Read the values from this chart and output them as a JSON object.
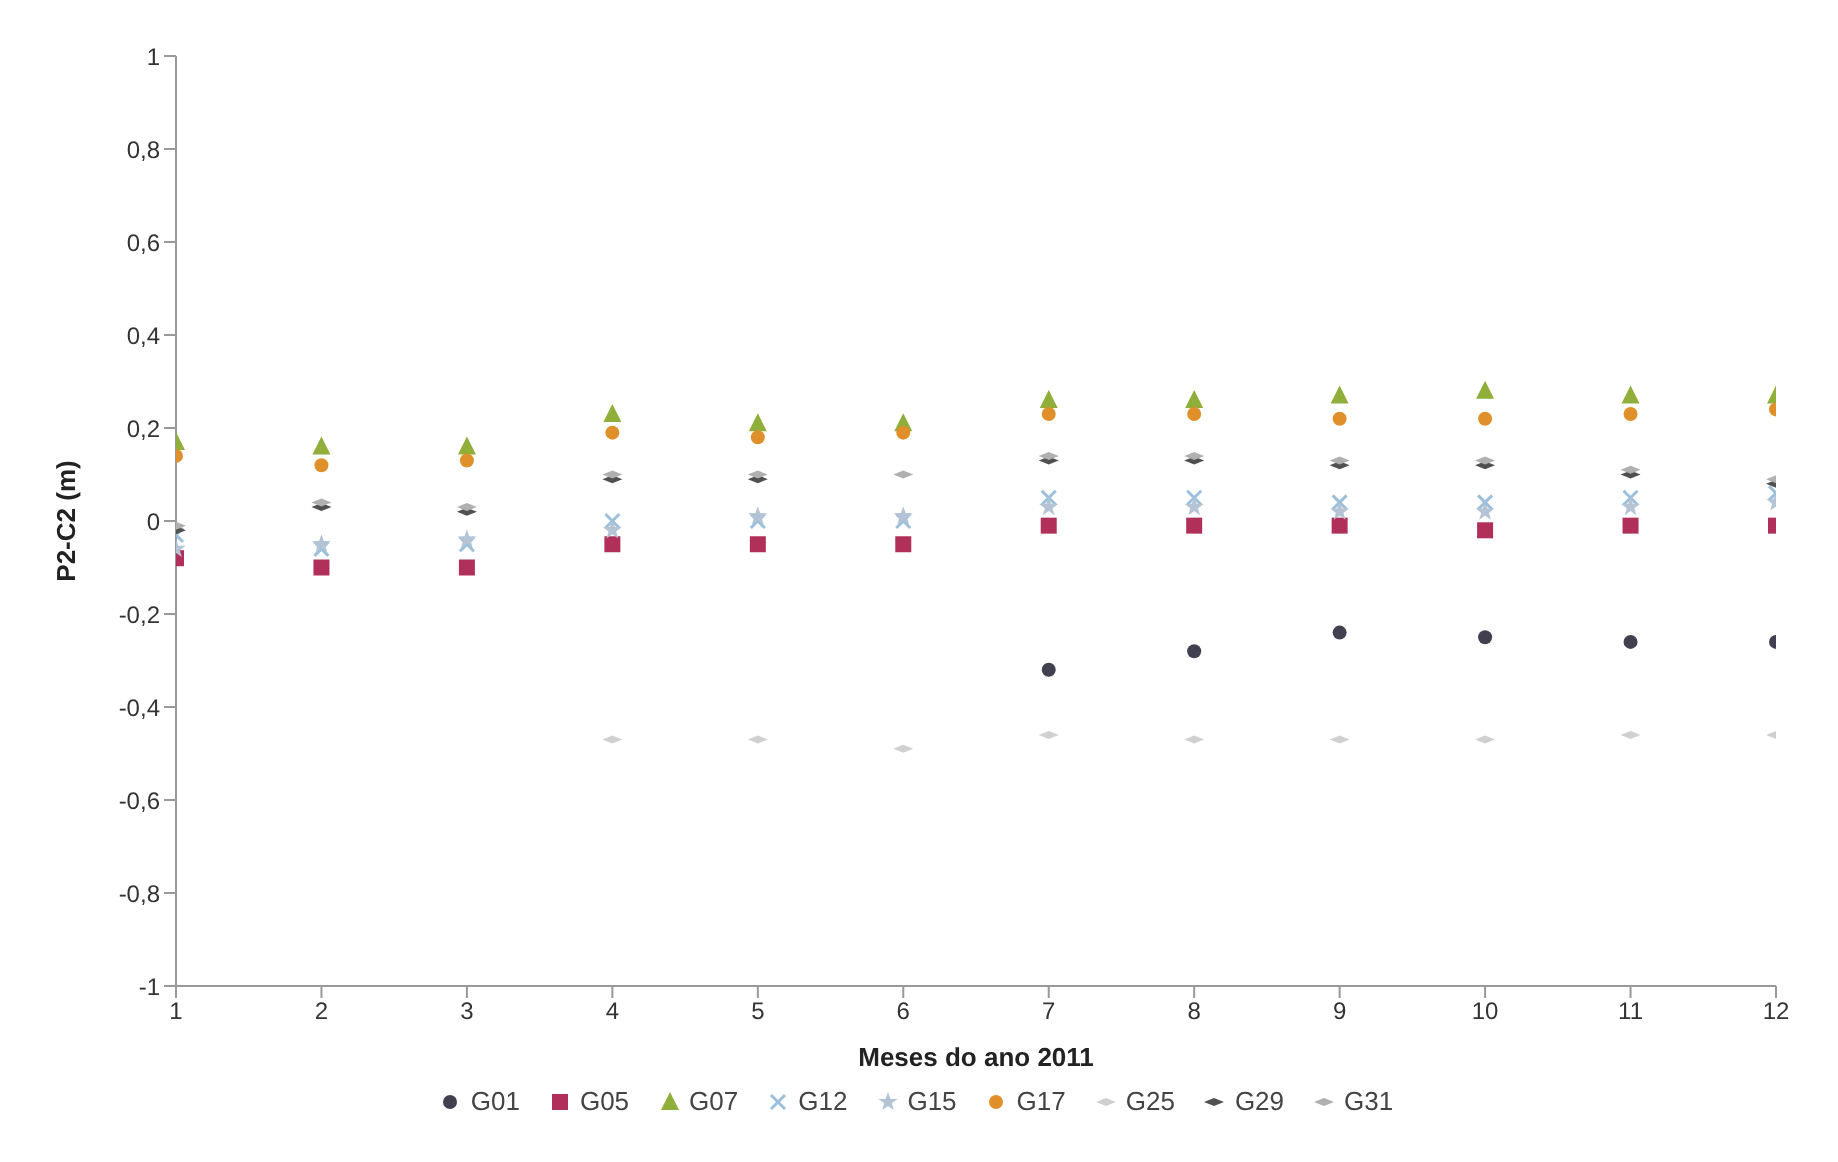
{
  "chart_data": {
    "type": "scatter",
    "xlabel": "Meses do ano 2011",
    "ylabel": "P2-C2 (m)",
    "x": [
      1,
      2,
      3,
      4,
      5,
      6,
      7,
      8,
      9,
      10,
      11,
      12
    ],
    "xlim": [
      1,
      12
    ],
    "xticks": [
      1,
      2,
      3,
      4,
      5,
      6,
      7,
      8,
      9,
      10,
      11,
      12
    ],
    "ylim": [
      -1,
      1
    ],
    "yticks": [
      {
        "value": -1,
        "label": "-1"
      },
      {
        "value": -0.8,
        "label": "-0,8"
      },
      {
        "value": -0.6,
        "label": "-0,6"
      },
      {
        "value": -0.4,
        "label": "-0,4"
      },
      {
        "value": -0.2,
        "label": "-0,2"
      },
      {
        "value": 0,
        "label": "0"
      },
      {
        "value": 0.2,
        "label": "0,2"
      },
      {
        "value": 0.4,
        "label": "0,4"
      },
      {
        "value": 0.6,
        "label": "0,6"
      },
      {
        "value": 0.8,
        "label": "0,8"
      },
      {
        "value": 1,
        "label": "1"
      }
    ],
    "grid": false,
    "legend": "bottom",
    "series": [
      {
        "name": "G01",
        "color": "#404050",
        "marker": "circle",
        "values": [
          null,
          null,
          null,
          null,
          null,
          null,
          -0.32,
          -0.28,
          -0.24,
          -0.25,
          -0.26,
          -0.26
        ]
      },
      {
        "name": "G05",
        "color": "#b0305a",
        "marker": "square",
        "values": [
          -0.08,
          -0.1,
          -0.1,
          -0.05,
          -0.05,
          -0.05,
          -0.01,
          -0.01,
          -0.01,
          -0.02,
          -0.01,
          -0.01
        ]
      },
      {
        "name": "G07",
        "color": "#8fae3a",
        "marker": "triangle",
        "values": [
          0.17,
          0.16,
          0.16,
          0.23,
          0.21,
          0.21,
          0.26,
          0.26,
          0.27,
          0.28,
          0.27,
          0.27
        ]
      },
      {
        "name": "G12",
        "color": "#9cc0dc",
        "marker": "cross",
        "values": [
          -0.03,
          -0.06,
          -0.05,
          0,
          0,
          0,
          0.05,
          0.05,
          0.04,
          0.04,
          0.05,
          0.06
        ]
      },
      {
        "name": "G15",
        "color": "#b4c4d4",
        "marker": "star",
        "values": [
          -0.06,
          -0.05,
          -0.04,
          -0.02,
          0.01,
          0.01,
          0.03,
          0.03,
          0.02,
          0.02,
          0.03,
          0.04
        ]
      },
      {
        "name": "G17",
        "color": "#e0902a",
        "marker": "circle",
        "values": [
          0.14,
          0.12,
          0.13,
          0.19,
          0.18,
          0.19,
          0.23,
          0.23,
          0.22,
          0.22,
          0.23,
          0.24
        ]
      },
      {
        "name": "G25",
        "color": "#d0d0d0",
        "marker": "diamond",
        "values": [
          null,
          null,
          null,
          -0.47,
          -0.47,
          -0.49,
          -0.46,
          -0.47,
          -0.47,
          -0.47,
          -0.46,
          -0.46
        ]
      },
      {
        "name": "G29",
        "color": "#505050",
        "marker": "diamond",
        "values": [
          -0.02,
          0.03,
          0.02,
          0.09,
          0.09,
          null,
          0.13,
          0.13,
          0.12,
          0.12,
          0.1,
          0.08
        ]
      },
      {
        "name": "G31",
        "color": "#b0b0b0",
        "marker": "diamond",
        "values": [
          -0.01,
          0.04,
          0.03,
          0.1,
          0.1,
          0.1,
          0.14,
          0.14,
          0.13,
          0.13,
          0.11,
          0.09
        ]
      }
    ]
  }
}
